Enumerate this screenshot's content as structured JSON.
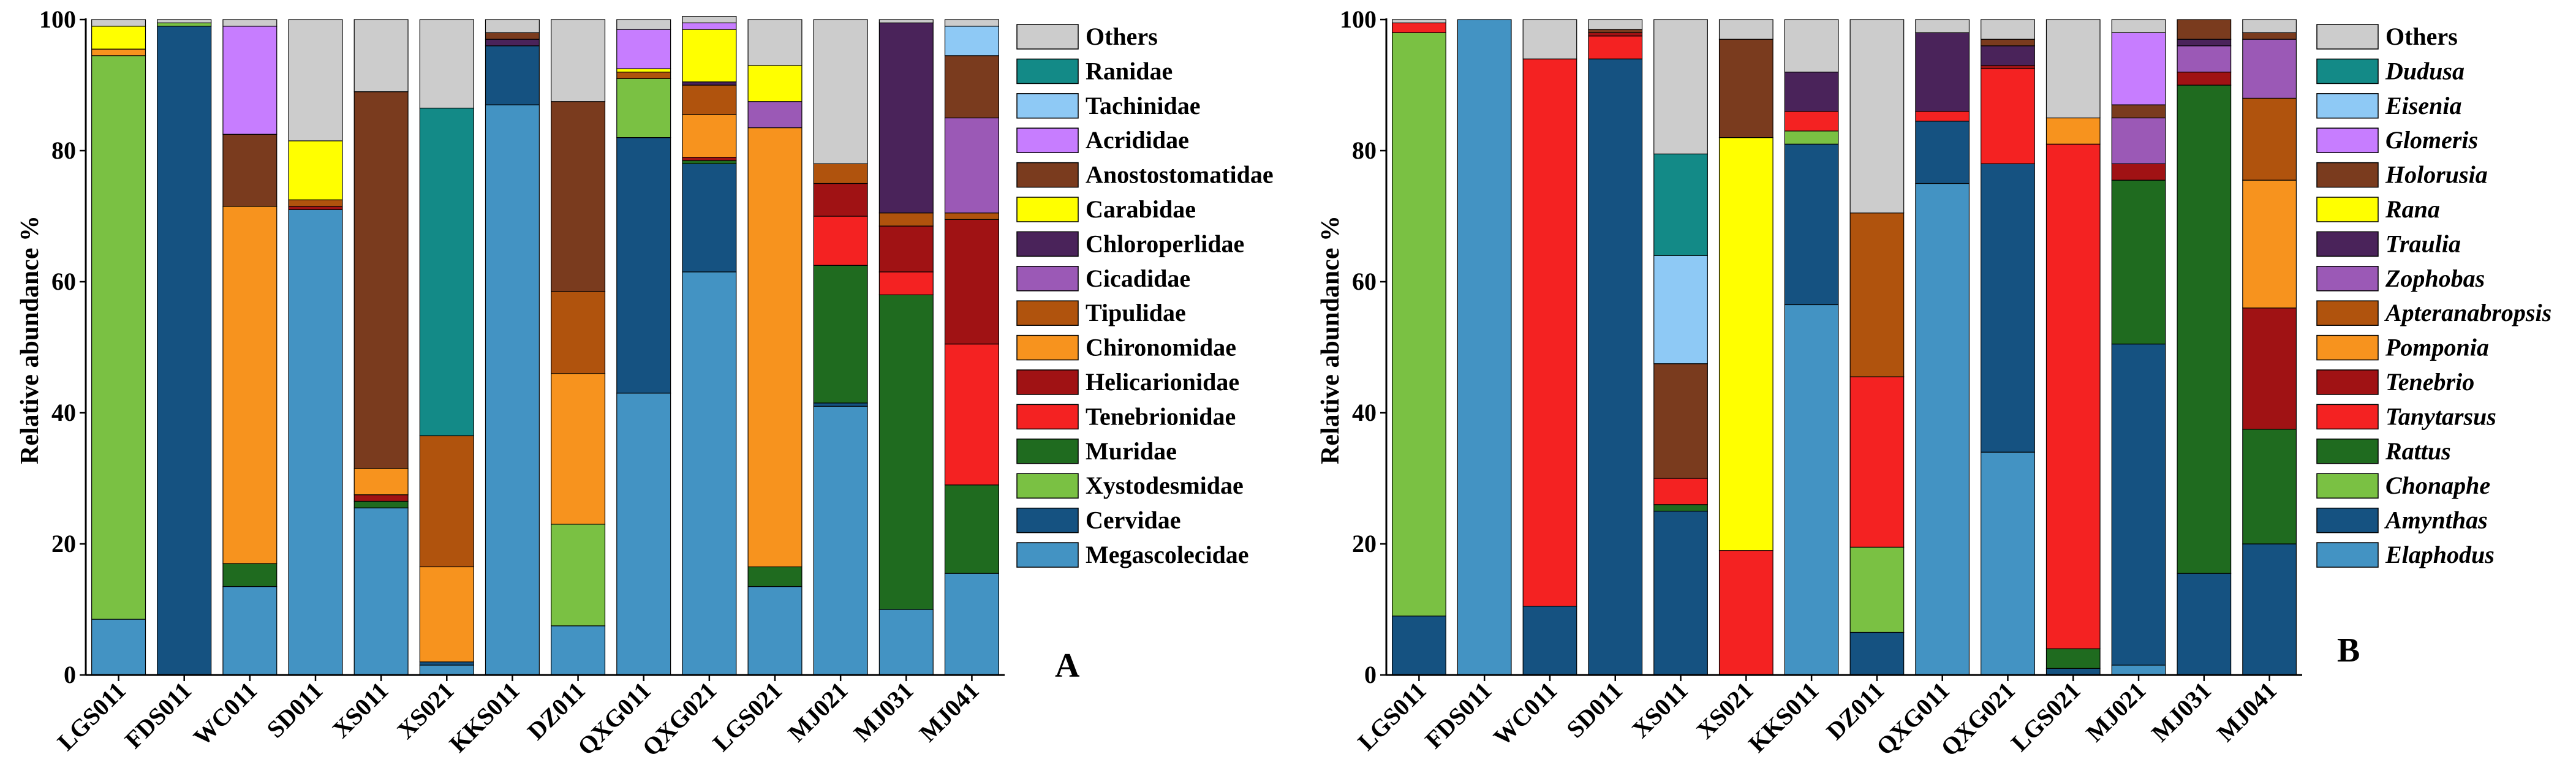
{
  "chart_data": [
    {
      "panel": "A",
      "type": "stacked_bar",
      "ylabel": "Relative abundance %",
      "ylim": [
        0,
        100
      ],
      "yticks": [
        0,
        20,
        40,
        60,
        80,
        100
      ],
      "categories": [
        "LGS011",
        "FDS011",
        "WC011",
        "SD011",
        "XS011",
        "XS021",
        "KKS011",
        "DZ011",
        "QXG011",
        "QXG021",
        "LGS021",
        "MJ021",
        "MJ031",
        "MJ041"
      ],
      "series": [
        {
          "name": "Megascolecidae",
          "color": "#4393C3",
          "values": [
            8.5,
            0,
            13.5,
            71,
            25.5,
            1.5,
            87,
            7.5,
            43,
            61.5,
            13.5,
            41,
            10,
            15.5
          ]
        },
        {
          "name": "Cervidae",
          "color": "#155281",
          "values": [
            0,
            99,
            0,
            0,
            0,
            0.5,
            9,
            0,
            39,
            16.5,
            0,
            0.5,
            0,
            0
          ]
        },
        {
          "name": "Xystodesmidae",
          "color": "#7AC143",
          "values": [
            86,
            0.5,
            0,
            0,
            0,
            0,
            0,
            15.5,
            9,
            0,
            0,
            0,
            0,
            0
          ]
        },
        {
          "name": "Muridae",
          "color": "#1F6B1F",
          "values": [
            0,
            0,
            3.5,
            0,
            1,
            0,
            0,
            0,
            0,
            0.5,
            3,
            21,
            48,
            13.5
          ]
        },
        {
          "name": "Tenebrionidae",
          "color": "#F42222",
          "values": [
            0,
            0,
            0,
            0,
            0,
            0,
            0,
            0,
            0,
            0,
            0,
            7.5,
            3.5,
            21.5
          ]
        },
        {
          "name": "Helicarionidae",
          "color": "#A01214",
          "values": [
            0,
            0,
            0,
            0.5,
            1,
            0,
            0,
            0,
            0,
            0.5,
            0,
            5,
            7,
            19
          ]
        },
        {
          "name": "Chironomidae",
          "color": "#F7931E",
          "values": [
            1,
            0,
            54.5,
            0,
            4,
            14.5,
            0,
            23,
            0,
            6.5,
            67,
            0,
            0,
            0
          ]
        },
        {
          "name": "Tipulidae",
          "color": "#B0530D",
          "values": [
            0,
            0,
            0,
            1,
            0,
            20,
            0,
            12.5,
            1,
            4.5,
            0,
            3,
            2,
            1
          ]
        },
        {
          "name": "Cicadidae",
          "color": "#9B59B6",
          "values": [
            0,
            0,
            0,
            0,
            0,
            0,
            0,
            0,
            0,
            0,
            4,
            0,
            0,
            14.5
          ]
        },
        {
          "name": "Chloroperlidae",
          "color": "#4A235A",
          "values": [
            0,
            0,
            0,
            0,
            0,
            0,
            1,
            0,
            0,
            0.5,
            0,
            0,
            29,
            0
          ]
        },
        {
          "name": "Carabidae",
          "color": "#FFFF00",
          "values": [
            3.5,
            0,
            0,
            9,
            0,
            0,
            0,
            0,
            0.5,
            8,
            5.5,
            0,
            0,
            0
          ]
        },
        {
          "name": "Anostostomatidae",
          "color": "#7A3B1E",
          "values": [
            0,
            0,
            11,
            0,
            57.5,
            0,
            1,
            29,
            0,
            0,
            0,
            0,
            0,
            9.5
          ]
        },
        {
          "name": "Acrididae",
          "color": "#C77DFF",
          "values": [
            0,
            0,
            16.5,
            0,
            0,
            0,
            0,
            0,
            6,
            1,
            0,
            0,
            0,
            0
          ]
        },
        {
          "name": "Tachinidae",
          "color": "#8EC9F5",
          "values": [
            0,
            0,
            0,
            0,
            0,
            0,
            0,
            0,
            0,
            0,
            0,
            0,
            0,
            4.5
          ]
        },
        {
          "name": "Ranidae",
          "color": "#138A87",
          "values": [
            0,
            0,
            0,
            0,
            0,
            50,
            0,
            0,
            0,
            0,
            0,
            0,
            0,
            0
          ]
        },
        {
          "name": "Others",
          "color": "#CCCCCC",
          "values": [
            1,
            0.5,
            1,
            18.5,
            11,
            13.5,
            2,
            12.5,
            1.5,
            1,
            7,
            22,
            0.5,
            1
          ]
        }
      ],
      "legend_order": [
        "Others",
        "Ranidae",
        "Tachinidae",
        "Acrididae",
        "Anostostomatidae",
        "Carabidae",
        "Chloroperlidae",
        "Cicadidae",
        "Tipulidae",
        "Chironomidae",
        "Helicarionidae",
        "Tenebrionidae",
        "Muridae",
        "Xystodesmidae",
        "Cervidae",
        "Megascolecidae"
      ],
      "legend_italic": false,
      "label": "A"
    },
    {
      "panel": "B",
      "type": "stacked_bar",
      "ylabel": "Relative abundance %",
      "ylim": [
        0,
        100
      ],
      "yticks": [
        0,
        20,
        40,
        60,
        80,
        100
      ],
      "categories": [
        "LGS011",
        "FDS011",
        "WC011",
        "SD011",
        "XS011",
        "XS021",
        "KKS011",
        "DZ011",
        "QXG011",
        "QXG021",
        "LGS021",
        "MJ021",
        "MJ031",
        "MJ041"
      ],
      "series": [
        {
          "name": "Elaphodus",
          "color": "#4393C3",
          "values": [
            0,
            100,
            0,
            0,
            0,
            0,
            56.5,
            0,
            75,
            34,
            0,
            1.5,
            0,
            0
          ]
        },
        {
          "name": "Amynthas",
          "color": "#155281",
          "values": [
            9,
            0,
            10.5,
            94,
            25,
            0,
            24.5,
            6.5,
            9.5,
            44,
            1,
            49,
            15.5,
            20
          ]
        },
        {
          "name": "Chonaphe",
          "color": "#7AC143",
          "values": [
            89,
            0,
            0,
            0,
            0,
            0,
            2,
            13,
            0,
            0,
            0,
            0,
            0,
            0
          ]
        },
        {
          "name": "Rattus",
          "color": "#1F6B1F",
          "values": [
            0,
            0,
            0,
            0,
            1,
            0,
            0,
            0,
            0,
            0,
            3,
            25,
            74.5,
            17.5
          ]
        },
        {
          "name": "Tanytarsus",
          "color": "#F42222",
          "values": [
            1.5,
            0,
            83.5,
            3.5,
            4,
            19,
            3,
            26,
            1.5,
            14.5,
            77,
            0,
            0,
            0
          ]
        },
        {
          "name": "Tenebrio",
          "color": "#A01214",
          "values": [
            0,
            0,
            0,
            0.5,
            0,
            0,
            0,
            0,
            0,
            0.5,
            0,
            2.5,
            2,
            18.5
          ]
        },
        {
          "name": "Pomponia",
          "color": "#F7931E",
          "values": [
            0,
            0,
            0,
            0,
            0,
            0,
            0,
            0,
            0,
            0,
            4,
            0,
            0,
            19.5
          ]
        },
        {
          "name": "Apteranabropsis",
          "color": "#B0530D",
          "values": [
            0,
            0,
            0,
            0,
            0,
            0,
            0,
            25,
            0,
            0,
            0,
            0,
            0,
            12.5
          ]
        },
        {
          "name": "Zophobas",
          "color": "#9B59B6",
          "values": [
            0,
            0,
            0,
            0,
            0,
            0,
            0,
            0,
            0,
            0,
            0,
            7,
            4,
            9
          ]
        },
        {
          "name": "Traulia",
          "color": "#4A235A",
          "values": [
            0,
            0,
            0,
            0,
            0,
            0,
            6,
            0,
            12,
            3,
            0,
            0,
            1,
            0
          ]
        },
        {
          "name": "Rana",
          "color": "#FFFF00",
          "values": [
            0,
            0,
            0,
            0,
            0,
            63,
            0,
            0,
            0,
            0,
            0,
            0,
            0,
            0
          ]
        },
        {
          "name": "Holorusia",
          "color": "#7A3B1E",
          "values": [
            0,
            0,
            0,
            0.5,
            17.5,
            15,
            0,
            0,
            0,
            1,
            0,
            2,
            3,
            1
          ]
        },
        {
          "name": "Glomeris",
          "color": "#C77DFF",
          "values": [
            0,
            0,
            0,
            0,
            0,
            0,
            0,
            0,
            0,
            0,
            0,
            11,
            0,
            0
          ]
        },
        {
          "name": "Eisenia",
          "color": "#8EC9F5",
          "values": [
            0,
            0,
            0,
            0,
            16.5,
            0,
            0,
            0,
            0,
            0,
            0,
            0,
            0,
            0
          ]
        },
        {
          "name": "Dudusa",
          "color": "#138A87",
          "values": [
            0,
            0,
            0,
            0,
            15.5,
            0,
            0,
            0,
            0,
            0,
            0,
            0,
            0,
            0
          ]
        },
        {
          "name": "Others",
          "color": "#CCCCCC",
          "values": [
            0.5,
            0,
            6,
            1.5,
            20.5,
            3,
            8,
            29.5,
            2,
            3,
            15,
            2,
            0,
            2
          ]
        }
      ],
      "legend_order": [
        "Others",
        "Dudusa",
        "Eisenia",
        "Glomeris",
        "Holorusia",
        "Rana",
        "Traulia",
        "Zophobas",
        "Apteranabropsis",
        "Pomponia",
        "Tenebrio",
        "Tanytarsus",
        "Rattus",
        "Chonaphe",
        "Amynthas",
        "Elaphodus"
      ],
      "legend_italic": true,
      "label": "B"
    }
  ]
}
